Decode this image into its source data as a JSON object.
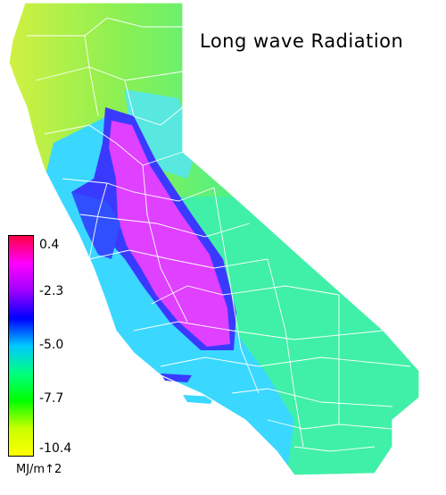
{
  "title": "Long wave Radiation",
  "legend": {
    "ticks": [
      "0.4",
      "-2.3",
      "-5.0",
      "-7.7",
      "-10.4"
    ],
    "units": "MJ/m↑2",
    "colors": [
      "#ff0044",
      "#ff00ff",
      "#a000ff",
      "#0000ff",
      "#00c8ff",
      "#00ff80",
      "#00ff00",
      "#c8ff00",
      "#ffff00"
    ]
  },
  "map": {
    "region": "California",
    "palette": {
      "coast_north": "#b8f04a",
      "mountains": "#38f09a",
      "coastal_zone": "#3ad8ff",
      "valley_edge": "#3a3aff",
      "valley_core": "#e040ff",
      "desert_southeast": "#40ffa0",
      "county_lines": "#ffffff"
    }
  }
}
